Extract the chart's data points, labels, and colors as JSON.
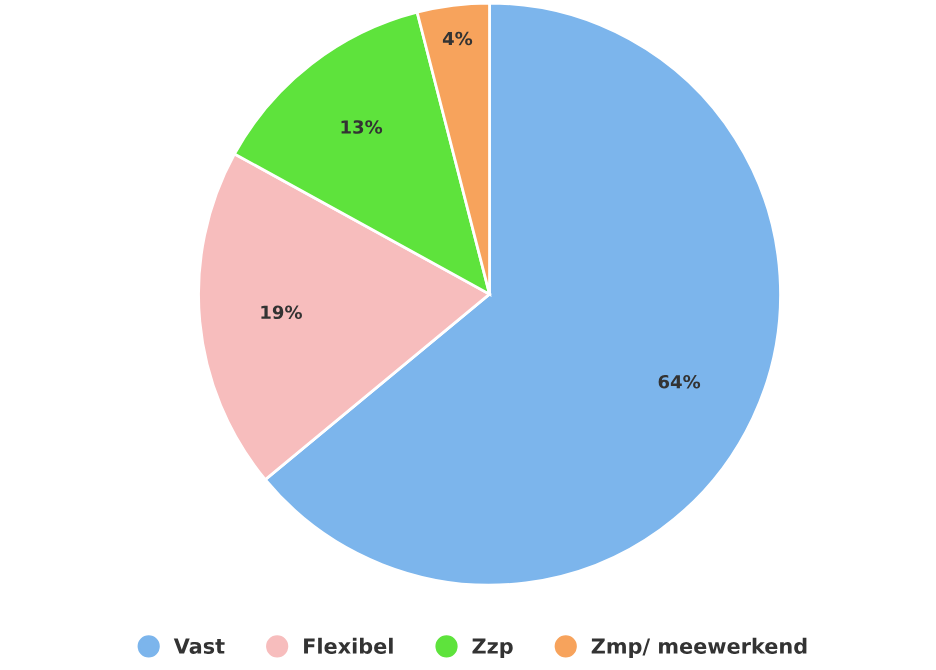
{
  "chart_data": {
    "type": "pie",
    "categories": [
      "Vast",
      "Flexibel",
      "Zzp",
      "Zmp/ meewerkend"
    ],
    "values": [
      64,
      19,
      13,
      4
    ],
    "colors": [
      "#7cb5ec",
      "#f7bdbd",
      "#5ee33c",
      "#f7a35c"
    ],
    "value_labels": [
      "64%",
      "19%",
      "13%",
      "4%"
    ],
    "legend": "bottom"
  }
}
